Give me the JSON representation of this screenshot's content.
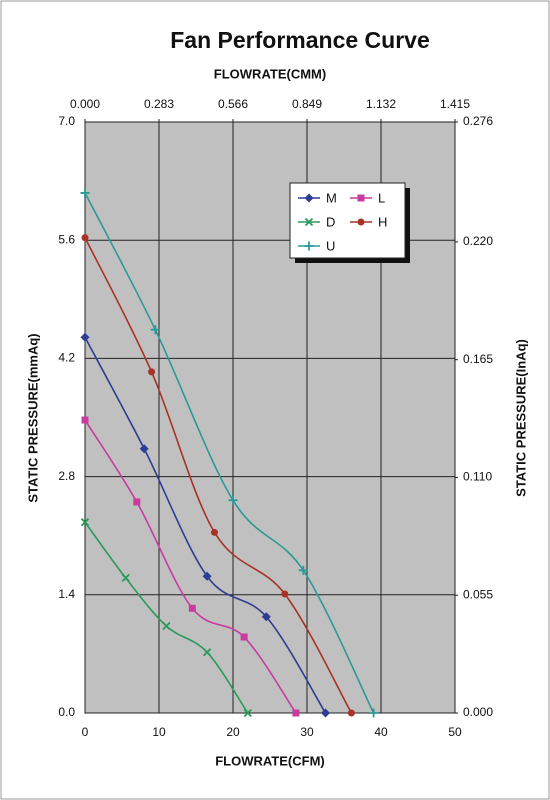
{
  "chart_data": {
    "type": "line",
    "title": "Fan Performance Curve",
    "x_label": "FLOWRATE(CFM)",
    "x2_label": "FLOWRATE(CMM)",
    "y_label": "STATIC PRESSURE(mmAq)",
    "y2_label": "STATIC PRESSURE(InAq)",
    "xlim": [
      0,
      50
    ],
    "xticks": [
      0,
      10,
      20,
      30,
      40,
      50
    ],
    "x2lim": [
      0,
      1.415
    ],
    "x2ticks": [
      {
        "value": 0,
        "label": "0.000"
      },
      0.283,
      0.566,
      0.849,
      1.132,
      1.415
    ],
    "ylim": [
      0,
      7
    ],
    "yticks": [
      {
        "value": 0,
        "label": "0.0"
      },
      1.4,
      2.8,
      4.2,
      5.6,
      {
        "value": 7,
        "label": "7.0"
      }
    ],
    "y2lim": [
      0,
      0.276
    ],
    "y2ticks": [
      {
        "value": 0,
        "label": "0.000"
      },
      0.055,
      {
        "value": 0.11,
        "label": "0.110"
      },
      0.165,
      {
        "value": 0.22,
        "label": "0.220"
      },
      0.276
    ],
    "grid": true,
    "background": "#c0c0c0",
    "series": [
      {
        "name": "M",
        "color": "#2e3d94",
        "marker": "diamond",
        "x": [
          0,
          8,
          16.5,
          24.5,
          32.5
        ],
        "values": [
          4.45,
          3.13,
          1.62,
          1.14,
          0
        ]
      },
      {
        "name": "L",
        "color": "#c83ca0",
        "marker": "square",
        "x": [
          0,
          7,
          14.5,
          21.5,
          28.5
        ],
        "values": [
          3.47,
          2.5,
          1.24,
          0.9,
          0
        ]
      },
      {
        "name": "D",
        "color": "#2a9a5a",
        "marker": "x",
        "x": [
          0,
          5.5,
          11,
          16.5,
          22
        ],
        "values": [
          2.26,
          1.6,
          1.03,
          0.72,
          0
        ]
      },
      {
        "name": "H",
        "color": "#a83226",
        "marker": "circle",
        "x": [
          0,
          9,
          17.5,
          27,
          36
        ],
        "values": [
          5.63,
          4.04,
          2.14,
          1.41,
          0
        ]
      },
      {
        "name": "U",
        "color": "#2a9a96",
        "marker": "plus",
        "x": [
          0,
          9.5,
          20,
          29.5,
          39
        ],
        "values": [
          6.16,
          4.54,
          2.52,
          1.69,
          0
        ]
      }
    ]
  }
}
